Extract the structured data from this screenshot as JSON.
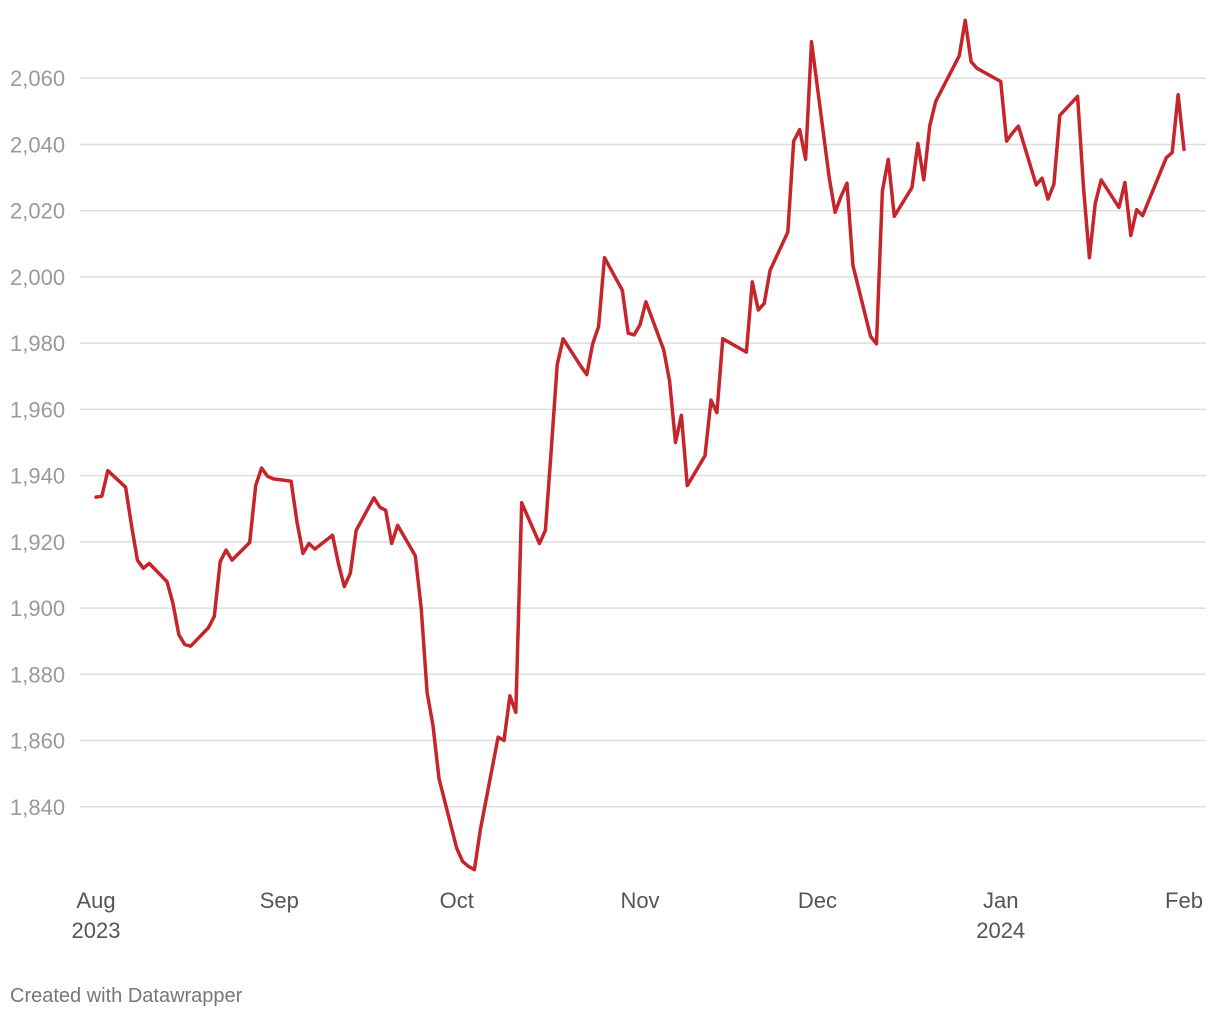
{
  "chart_data": {
    "type": "line",
    "title": "",
    "xlabel": "",
    "ylabel": "",
    "x_range": [
      "2023-08-01",
      "2024-02-01"
    ],
    "ylim": [
      1820,
      2080
    ],
    "grid": true,
    "y_ticks": [
      {
        "value": 1840,
        "label": "1,840"
      },
      {
        "value": 1860,
        "label": "1,860"
      },
      {
        "value": 1880,
        "label": "1,880"
      },
      {
        "value": 1900,
        "label": "1,900"
      },
      {
        "value": 1920,
        "label": "1,920"
      },
      {
        "value": 1940,
        "label": "1,940"
      },
      {
        "value": 1960,
        "label": "1,960"
      },
      {
        "value": 1980,
        "label": "1,980"
      },
      {
        "value": 2000,
        "label": "2,000"
      },
      {
        "value": 2020,
        "label": "2,020"
      },
      {
        "value": 2040,
        "label": "2,040"
      },
      {
        "value": 2060,
        "label": "2,060"
      }
    ],
    "x_ticks": [
      {
        "date": "2023-08-01",
        "label": "Aug",
        "sublabel": "2023"
      },
      {
        "date": "2023-09-01",
        "label": "Sep",
        "sublabel": ""
      },
      {
        "date": "2023-10-01",
        "label": "Oct",
        "sublabel": ""
      },
      {
        "date": "2023-11-01",
        "label": "Nov",
        "sublabel": ""
      },
      {
        "date": "2023-12-01",
        "label": "Dec",
        "sublabel": ""
      },
      {
        "date": "2024-01-01",
        "label": "Jan",
        "sublabel": "2024"
      },
      {
        "date": "2024-02-01",
        "label": "Feb",
        "sublabel": ""
      }
    ],
    "series": [
      {
        "color": "#c5252b",
        "points": [
          [
            "2023-08-01",
            1933.5
          ],
          [
            "2023-08-02",
            1933.8
          ],
          [
            "2023-08-03",
            1941.5
          ],
          [
            "2023-08-06",
            1936.5
          ],
          [
            "2023-08-07",
            1925
          ],
          [
            "2023-08-08",
            1914.5
          ],
          [
            "2023-08-09",
            1912
          ],
          [
            "2023-08-10",
            1913.5
          ],
          [
            "2023-08-13",
            1908
          ],
          [
            "2023-08-14",
            1901.5
          ],
          [
            "2023-08-15",
            1892
          ],
          [
            "2023-08-16",
            1889
          ],
          [
            "2023-08-17",
            1888.5
          ],
          [
            "2023-08-20",
            1894
          ],
          [
            "2023-08-21",
            1897.5
          ],
          [
            "2023-08-22",
            1914
          ],
          [
            "2023-08-23",
            1917.5
          ],
          [
            "2023-08-24",
            1914.5
          ],
          [
            "2023-08-27",
            1919.8
          ],
          [
            "2023-08-28",
            1937
          ],
          [
            "2023-08-29",
            1942.3
          ],
          [
            "2023-08-30",
            1939.8
          ],
          [
            "2023-08-31",
            1939
          ],
          [
            "2023-09-03",
            1938.3
          ],
          [
            "2023-09-04",
            1926
          ],
          [
            "2023-09-05",
            1916.5
          ],
          [
            "2023-09-06",
            1919.5
          ],
          [
            "2023-09-07",
            1917.8
          ],
          [
            "2023-09-10",
            1922
          ],
          [
            "2023-09-11",
            1913.5
          ],
          [
            "2023-09-12",
            1906.5
          ],
          [
            "2023-09-13",
            1910.5
          ],
          [
            "2023-09-14",
            1923.5
          ],
          [
            "2023-09-17",
            1933.3
          ],
          [
            "2023-09-18",
            1930.5
          ],
          [
            "2023-09-19",
            1929.5
          ],
          [
            "2023-09-20",
            1919.5
          ],
          [
            "2023-09-21",
            1925
          ],
          [
            "2023-09-24",
            1915.8
          ],
          [
            "2023-09-25",
            1900
          ],
          [
            "2023-09-26",
            1874.5
          ],
          [
            "2023-09-27",
            1864.5
          ],
          [
            "2023-09-28",
            1848.5
          ],
          [
            "2023-10-01",
            1827.5
          ],
          [
            "2023-10-02",
            1823.5
          ],
          [
            "2023-10-03",
            1822
          ],
          [
            "2023-10-04",
            1821
          ],
          [
            "2023-10-05",
            1833
          ],
          [
            "2023-10-08",
            1861
          ],
          [
            "2023-10-09",
            1860
          ],
          [
            "2023-10-10",
            1873.5
          ],
          [
            "2023-10-11",
            1868.5
          ],
          [
            "2023-10-12",
            1931.8
          ],
          [
            "2023-10-15",
            1919.5
          ],
          [
            "2023-10-16",
            1923.5
          ],
          [
            "2023-10-17",
            1948
          ],
          [
            "2023-10-18",
            1973.5
          ],
          [
            "2023-10-19",
            1981.3
          ],
          [
            "2023-10-22",
            1973
          ],
          [
            "2023-10-23",
            1970.5
          ],
          [
            "2023-10-24",
            1979.8
          ],
          [
            "2023-10-25",
            1985
          ],
          [
            "2023-10-26",
            2005.8
          ],
          [
            "2023-10-29",
            1996
          ],
          [
            "2023-10-30",
            1983
          ],
          [
            "2023-10-31",
            1982.5
          ],
          [
            "2023-11-01",
            1985.5
          ],
          [
            "2023-11-02",
            1992.5
          ],
          [
            "2023-11-05",
            1978
          ],
          [
            "2023-11-06",
            1968.5
          ],
          [
            "2023-11-07",
            1950
          ],
          [
            "2023-11-08",
            1958.2
          ],
          [
            "2023-11-09",
            1937
          ],
          [
            "2023-11-12",
            1946
          ],
          [
            "2023-11-13",
            1962.8
          ],
          [
            "2023-11-14",
            1959
          ],
          [
            "2023-11-15",
            1981.3
          ],
          [
            "2023-11-19",
            1977.3
          ],
          [
            "2023-11-20",
            1998.5
          ],
          [
            "2023-11-21",
            1990
          ],
          [
            "2023-11-22",
            1992
          ],
          [
            "2023-11-23",
            2002
          ],
          [
            "2023-11-26",
            2013.5
          ],
          [
            "2023-11-27",
            2041
          ],
          [
            "2023-11-28",
            2044.5
          ],
          [
            "2023-11-29",
            2035.5
          ],
          [
            "2023-11-30",
            2071
          ],
          [
            "2023-12-03",
            2030
          ],
          [
            "2023-12-04",
            2019.5
          ],
          [
            "2023-12-05",
            2024.3
          ],
          [
            "2023-12-06",
            2028.3
          ],
          [
            "2023-12-07",
            2003.5
          ],
          [
            "2023-12-10",
            1982
          ],
          [
            "2023-12-11",
            1979.8
          ],
          [
            "2023-12-12",
            2026
          ],
          [
            "2023-12-13",
            2035.5
          ],
          [
            "2023-12-14",
            2018.3
          ],
          [
            "2023-12-17",
            2027
          ],
          [
            "2023-12-18",
            2040.3
          ],
          [
            "2023-12-19",
            2029.3
          ],
          [
            "2023-12-20",
            2045.5
          ],
          [
            "2023-12-21",
            2053
          ],
          [
            "2023-12-25",
            2066.8
          ],
          [
            "2023-12-26",
            2077.5
          ],
          [
            "2023-12-27",
            2065
          ],
          [
            "2023-12-28",
            2063
          ],
          [
            "2024-01-01",
            2059
          ],
          [
            "2024-01-02",
            2041
          ],
          [
            "2024-01-03",
            2043.5
          ],
          [
            "2024-01-04",
            2045.5
          ],
          [
            "2024-01-07",
            2027.8
          ],
          [
            "2024-01-08",
            2029.8
          ],
          [
            "2024-01-09",
            2023.5
          ],
          [
            "2024-01-10",
            2028
          ],
          [
            "2024-01-11",
            2048.8
          ],
          [
            "2024-01-14",
            2054.5
          ],
          [
            "2024-01-15",
            2027
          ],
          [
            "2024-01-16",
            2005.8
          ],
          [
            "2024-01-17",
            2022.3
          ],
          [
            "2024-01-18",
            2029.3
          ],
          [
            "2024-01-21",
            2021
          ],
          [
            "2024-01-22",
            2028.5
          ],
          [
            "2024-01-23",
            2012.5
          ],
          [
            "2024-01-24",
            2020.3
          ],
          [
            "2024-01-25",
            2018.5
          ],
          [
            "2024-01-29",
            2036
          ],
          [
            "2024-01-30",
            2037.5
          ],
          [
            "2024-01-31",
            2055
          ],
          [
            "2024-02-01",
            2038.5
          ]
        ]
      }
    ]
  },
  "footer": {
    "credit": "Created with Datawrapper"
  }
}
